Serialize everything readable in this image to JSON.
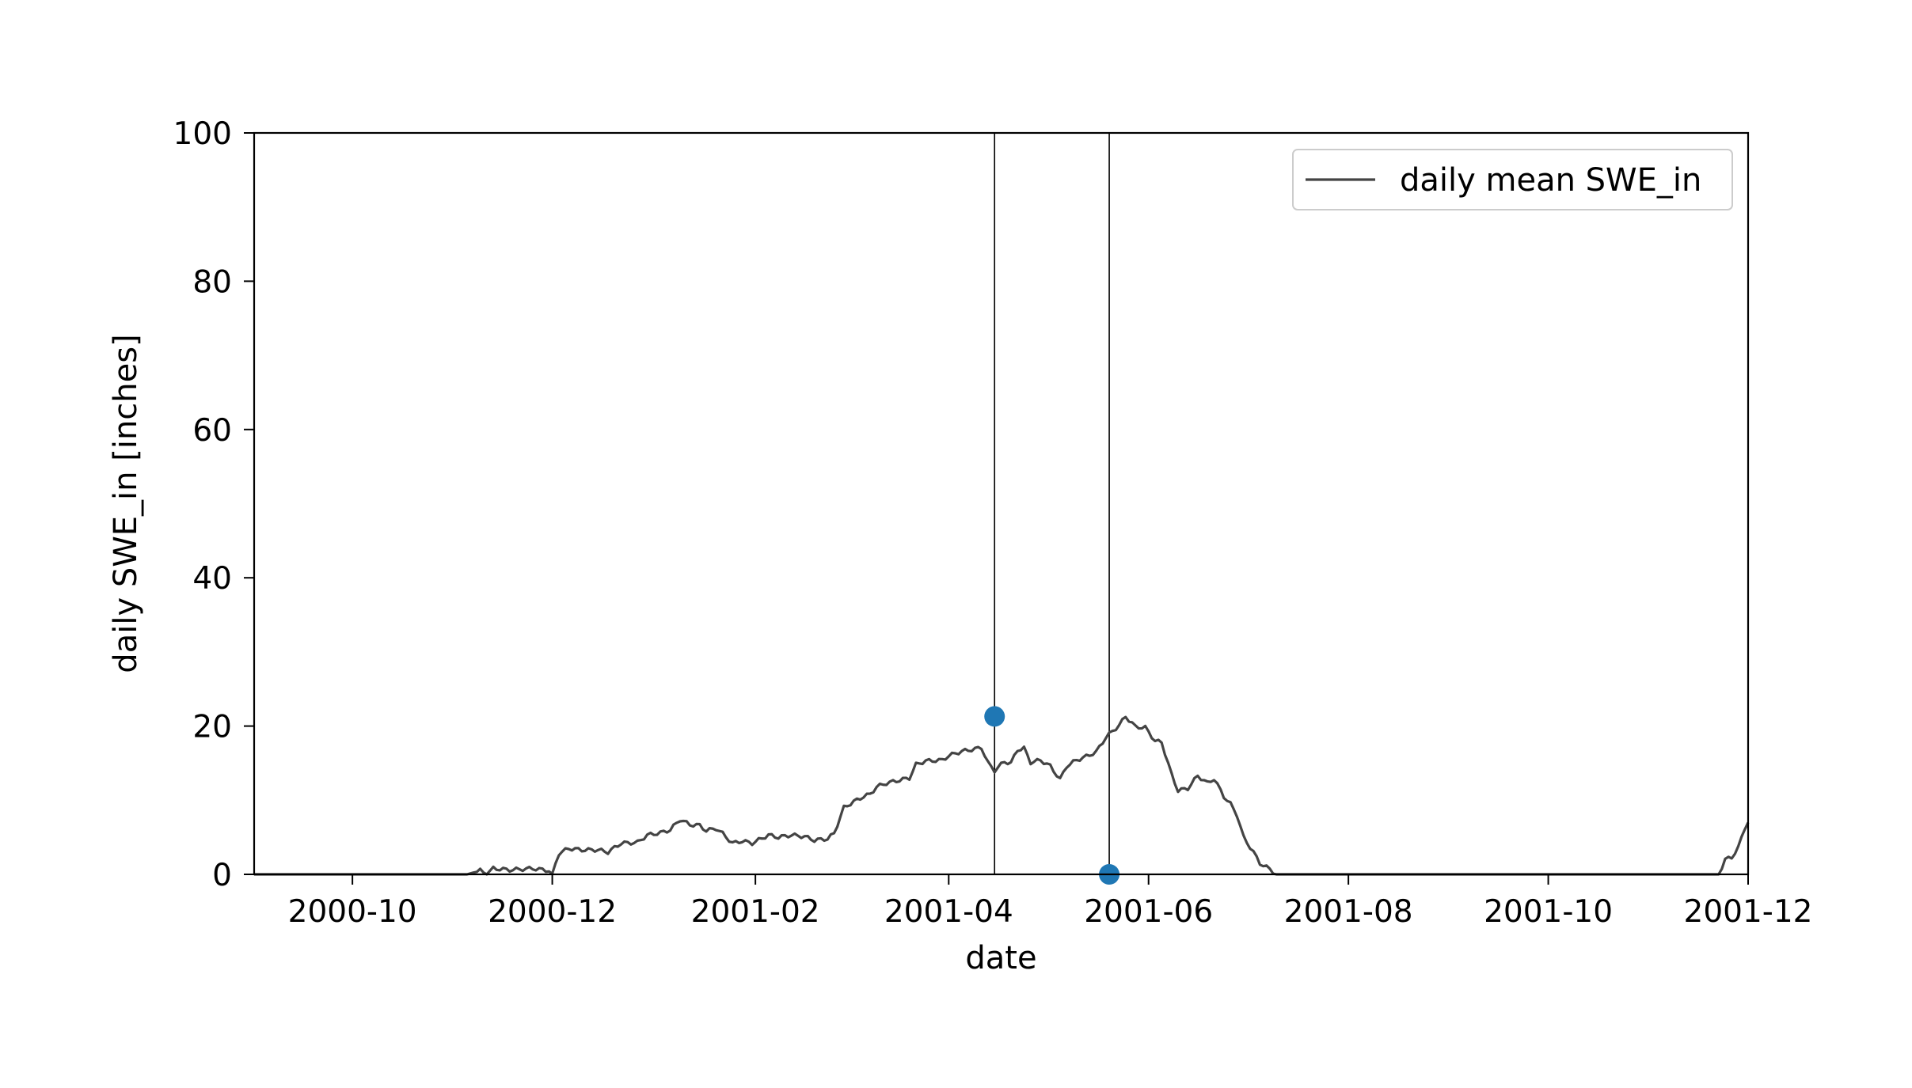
{
  "chart_data": {
    "type": "line",
    "title": "",
    "xlabel": "date",
    "ylabel": "daily SWE_in [inches]",
    "x_ticks": [
      "2000-10",
      "2000-12",
      "2001-02",
      "2001-04",
      "2001-06",
      "2001-08",
      "2001-10",
      "2001-12"
    ],
    "y_ticks": [
      0,
      20,
      40,
      60,
      80,
      100
    ],
    "xlim": [
      "2000-09-01",
      "2001-12-01"
    ],
    "ylim": [
      0,
      100
    ],
    "grid": false,
    "legend_position": "top-right",
    "colors": {
      "line": "#444444",
      "markers": "#1f77b4",
      "vlines": "#000000"
    },
    "series": [
      {
        "name": "daily mean SWE_in",
        "points": [
          [
            "2000-09-01",
            0
          ],
          [
            "2000-10-15",
            0
          ],
          [
            "2000-11-05",
            0
          ],
          [
            "2000-11-09",
            0.5
          ],
          [
            "2000-11-11",
            0
          ],
          [
            "2000-11-13",
            0.8
          ],
          [
            "2000-11-18",
            0.6
          ],
          [
            "2000-11-25",
            0.8
          ],
          [
            "2000-11-30",
            0.5
          ],
          [
            "2000-12-01",
            0.1
          ],
          [
            "2000-12-03",
            2.8
          ],
          [
            "2000-12-06",
            3.5
          ],
          [
            "2000-12-10",
            3.3
          ],
          [
            "2000-12-15",
            3.3
          ],
          [
            "2000-12-18",
            3.0
          ],
          [
            "2000-12-22",
            4.2
          ],
          [
            "2000-12-27",
            4.3
          ],
          [
            "2000-12-30",
            5.3
          ],
          [
            "2001-01-03",
            5.6
          ],
          [
            "2001-01-06",
            6.0
          ],
          [
            "2001-01-09",
            7.4
          ],
          [
            "2001-01-12",
            6.7
          ],
          [
            "2001-01-15",
            6.6
          ],
          [
            "2001-01-17",
            5.9
          ],
          [
            "2001-01-20",
            6.2
          ],
          [
            "2001-01-22",
            5.5
          ],
          [
            "2001-01-25",
            4.2
          ],
          [
            "2001-01-28",
            4.5
          ],
          [
            "2001-01-31",
            4.2
          ],
          [
            "2001-02-05",
            5.3
          ],
          [
            "2001-02-08",
            5.0
          ],
          [
            "2001-02-12",
            5.3
          ],
          [
            "2001-02-16",
            5.1
          ],
          [
            "2001-02-19",
            4.6
          ],
          [
            "2001-02-23",
            4.8
          ],
          [
            "2001-02-25",
            5.5
          ],
          [
            "2001-02-28",
            9.0
          ],
          [
            "2001-03-03",
            9.8
          ],
          [
            "2001-03-06",
            10.5
          ],
          [
            "2001-03-08",
            10.8
          ],
          [
            "2001-03-10",
            11.8
          ],
          [
            "2001-03-13",
            12.3
          ],
          [
            "2001-03-18",
            12.8
          ],
          [
            "2001-03-20",
            13.0
          ],
          [
            "2001-03-22",
            14.8
          ],
          [
            "2001-03-25",
            15.3
          ],
          [
            "2001-03-30",
            15.4
          ],
          [
            "2001-04-01",
            16.0
          ],
          [
            "2001-04-05",
            16.6
          ],
          [
            "2001-04-09",
            16.9
          ],
          [
            "2001-04-11",
            17.1
          ],
          [
            "2001-04-13",
            15.0
          ],
          [
            "2001-04-15",
            14.0
          ],
          [
            "2001-04-18",
            15.2
          ],
          [
            "2001-04-20",
            15.0
          ],
          [
            "2001-04-22",
            16.8
          ],
          [
            "2001-04-24",
            17.0
          ],
          [
            "2001-04-26",
            15.1
          ],
          [
            "2001-04-29",
            15.4
          ],
          [
            "2001-05-02",
            14.6
          ],
          [
            "2001-05-05",
            12.8
          ],
          [
            "2001-05-07",
            14.6
          ],
          [
            "2001-05-10",
            15.4
          ],
          [
            "2001-05-13",
            15.9
          ],
          [
            "2001-05-16",
            16.5
          ],
          [
            "2001-05-19",
            18.5
          ],
          [
            "2001-05-23",
            20.1
          ],
          [
            "2001-05-25",
            21.3
          ],
          [
            "2001-05-28",
            19.9
          ],
          [
            "2001-05-31",
            19.8
          ],
          [
            "2001-06-03",
            18.0
          ],
          [
            "2001-06-05",
            17.8
          ],
          [
            "2001-06-08",
            13.5
          ],
          [
            "2001-06-10",
            11.3
          ],
          [
            "2001-06-13",
            11.6
          ],
          [
            "2001-06-16",
            13.3
          ],
          [
            "2001-06-19",
            12.3
          ],
          [
            "2001-06-21",
            12.9
          ],
          [
            "2001-06-24",
            10.5
          ],
          [
            "2001-06-26",
            9.5
          ],
          [
            "2001-06-28",
            8.0
          ],
          [
            "2001-06-30",
            5.0
          ],
          [
            "2001-07-03",
            3.0
          ],
          [
            "2001-07-05",
            1.5
          ],
          [
            "2001-07-08",
            0.7
          ],
          [
            "2001-07-10",
            0
          ],
          [
            "2001-11-22",
            0
          ],
          [
            "2001-11-24",
            2.0
          ],
          [
            "2001-11-26",
            2.3
          ],
          [
            "2001-11-28",
            3.6
          ],
          [
            "2001-11-30",
            6.3
          ],
          [
            "2001-12-01",
            7.0
          ]
        ]
      }
    ],
    "markers": [
      {
        "x": "2001-04-15",
        "y": 21.3
      },
      {
        "x": "2001-05-20",
        "y": 0
      }
    ],
    "vertical_lines": [
      "2001-04-15",
      "2001-05-20"
    ]
  }
}
